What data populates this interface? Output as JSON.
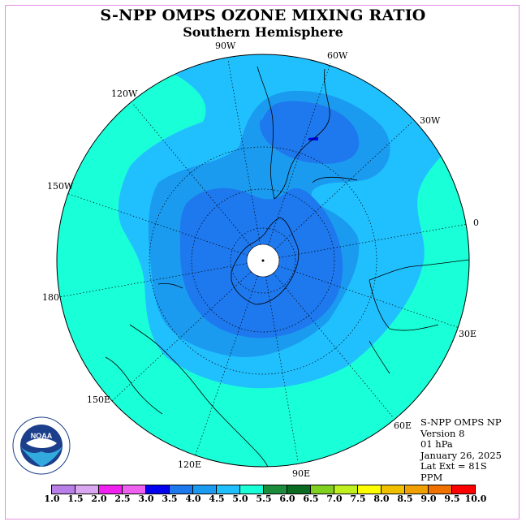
{
  "title": "S-NPP OMPS OZONE MIXING RATIO",
  "subtitle": "Southern Hemisphere",
  "longitude_labels": [
    "90W",
    "60W",
    "120W",
    "30W",
    "150W",
    "0",
    "180",
    "30E",
    "150E",
    "60E",
    "120E",
    "90E"
  ],
  "info": {
    "line1": "S-NPP OMPS NP",
    "line2": "Version 8",
    "line3": "01 hPa",
    "line4": "January 26, 2025",
    "line5": "Lat Ext = 81S",
    "line6": "PPM"
  },
  "colorbar": {
    "colors": [
      "#b97fe8",
      "#d9a8f0",
      "#f020f0",
      "#f060f0",
      "#0000ee",
      "#1e78ee",
      "#1a9bf0",
      "#20c0ff",
      "#19ffd8",
      "#1a8c3c",
      "#0b6a22",
      "#80d020",
      "#c0f020",
      "#ffff00",
      "#f0c000",
      "#f0a000",
      "#f07000",
      "#ff0000",
      "#d01010",
      "#8b4b2a"
    ],
    "ticks": [
      "1.0",
      "1.5",
      "2.0",
      "2.5",
      "3.0",
      "3.5",
      "4.0",
      "4.5",
      "5.0",
      "5.5",
      "6.0",
      "6.5",
      "7.0",
      "7.5",
      "8.0",
      "8.5",
      "9.0",
      "9.5",
      "10.0"
    ]
  },
  "map_colors": {
    "level_4_5_5_0": "#19ffd8",
    "level_4_0_4_5": "#20c0ff",
    "level_3_5_4_0": "#1a9bf0",
    "level_3_0_3_5": "#1e78ee",
    "level_2_5_3_0": "#0000ee",
    "no_data": "#ffffff"
  },
  "logo": {
    "text": "NOAA"
  }
}
